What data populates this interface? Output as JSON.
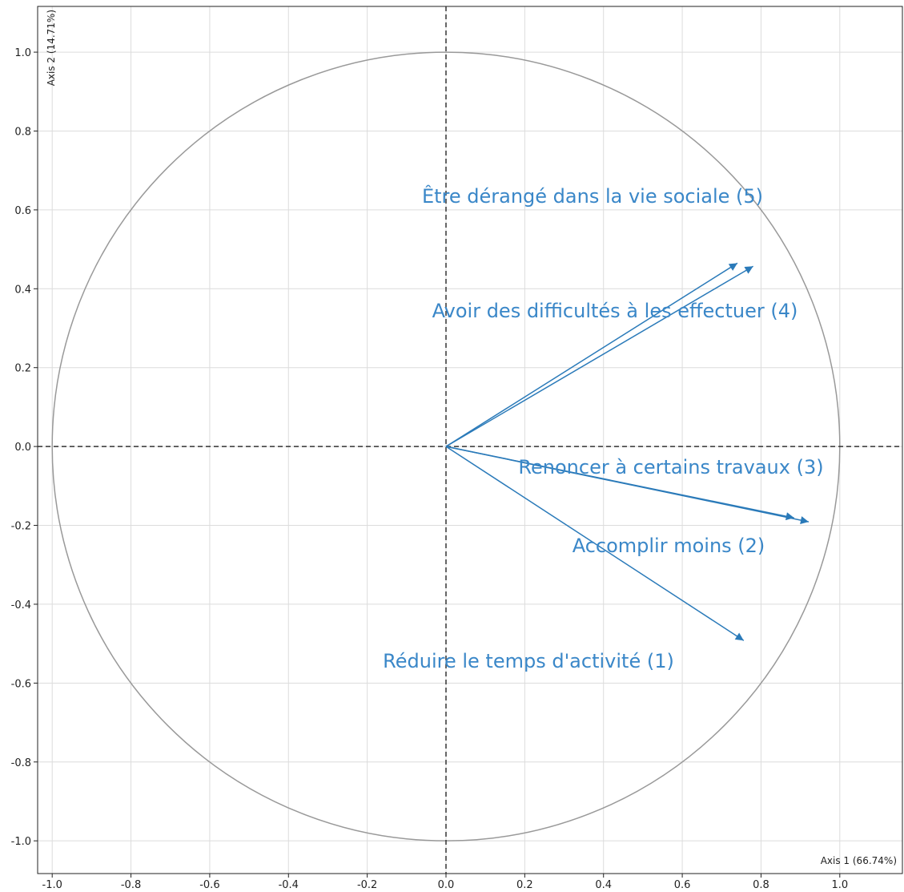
{
  "chart_data": {
    "type": "biplot",
    "labels": [
      "Réduire le temps d'activité (1)",
      "Accomplir moins (2)",
      "Renoncer à certains travaux (3)",
      "Avoir des difficultés à les effectuer (4)",
      "Être dérangé dans la vie sociale (5)"
    ],
    "x": [
      0.756,
      0.921,
      0.884,
      0.78,
      0.74
    ],
    "y": [
      -0.492,
      -0.191,
      -0.181,
      0.457,
      0.465
    ],
    "color": "#2a7ab9",
    "x_label": "Axis 1 (66.74%)",
    "y_label": "Axis 2 (14.71%)",
    "xlim": [
      -1.037,
      1.159
    ],
    "ylim": [
      -1.083,
      1.116
    ],
    "xticks": [
      {
        "value": -1,
        "label": "-1.0"
      },
      -0.8,
      -0.6,
      -0.4,
      -0.2,
      {
        "value": 0,
        "label": "0.0"
      },
      0.2,
      0.4,
      0.6,
      0.8,
      {
        "value": 1,
        "label": "1.0"
      }
    ],
    "yticks": [
      {
        "value": -1,
        "label": "-1.0"
      },
      -0.8,
      -0.6,
      -0.4,
      -0.2,
      {
        "value": 0,
        "label": "0.0"
      },
      0.2,
      0.4,
      0.6,
      0.8,
      {
        "value": 1,
        "label": "1.0"
      }
    ],
    "grid": true
  }
}
